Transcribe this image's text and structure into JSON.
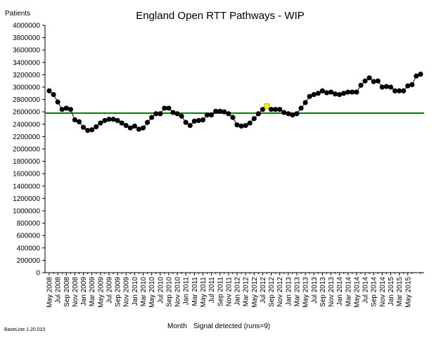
{
  "chart_data": {
    "type": "line",
    "title": "England Open RTT Pathways - WIP",
    "ylabel": "Patients",
    "xlabel": "Month",
    "signal_text": "Signal detected (runs=9)",
    "footer_note": "BaseLine 1.20.010",
    "ylim": [
      0,
      4000000
    ],
    "yticks": [
      "0",
      "200000",
      "400000",
      "600000",
      "800000",
      "1000000",
      "1200000",
      "1400000",
      "1600000",
      "1800000",
      "2000000",
      "2200000",
      "2400000",
      "2600000",
      "2800000",
      "3000000",
      "3200000",
      "3400000",
      "3600000",
      "3800000",
      "4000000"
    ],
    "x_tick_labels": [
      "May 2008",
      "Jul 2008",
      "Sep 2008",
      "Nov 2008",
      "Jan 2009",
      "Mar 2009",
      "May 2009",
      "Jul 2009",
      "Sep 2009",
      "Nov 2009",
      "Jan 2010",
      "Mar 2010",
      "May 2010",
      "Jul 2010",
      "Sep 2010",
      "Nov 2010",
      "Jan 2011",
      "Mar 2011",
      "May 2011",
      "Jul 2011",
      "Sep 2011",
      "Nov 2011",
      "Jan 2012",
      "Mar 2012",
      "May 2012",
      "Jul 2012",
      "Sep 2012",
      "Nov 2012",
      "Jan 2013",
      "Mar 2013",
      "May 2013",
      "Jul 2013",
      "Sep 2013",
      "Nov 2013",
      "Jan 2014",
      "Mar 2014",
      "May 2014",
      "Jul 2014",
      "Sep 2014",
      "Nov 2014",
      "Jan 2015",
      "Mar 2015",
      "May 2015"
    ],
    "baseline": 2580000,
    "series": [
      {
        "values": [
          2940000,
          2880000,
          2760000,
          2640000,
          2660000,
          2640000,
          2470000,
          2440000,
          2350000,
          2300000,
          2310000,
          2360000,
          2420000,
          2460000,
          2480000,
          2480000,
          2460000,
          2420000,
          2380000,
          2340000,
          2370000,
          2320000,
          2340000,
          2430000,
          2510000,
          2570000,
          2570000,
          2660000,
          2660000,
          2590000,
          2570000,
          2530000,
          2430000,
          2380000,
          2450000,
          2460000,
          2470000,
          2550000,
          2550000,
          2610000,
          2610000,
          2600000,
          2570000,
          2510000,
          2390000,
          2370000,
          2380000,
          2420000,
          2490000,
          2570000,
          2640000,
          2690000,
          2640000,
          2640000,
          2640000,
          2590000,
          2570000,
          2550000,
          2570000,
          2660000,
          2750000,
          2850000,
          2880000,
          2900000,
          2940000,
          2910000,
          2920000,
          2890000,
          2880000,
          2900000,
          2920000,
          2920000,
          2920000,
          3030000,
          3100000,
          3150000,
          3090000,
          3100000,
          3000000,
          3010000,
          3000000,
          2940000,
          2940000,
          2940000,
          3020000,
          3040000,
          3180000,
          3210000
        ],
        "highlight_index": 51,
        "colors": {
          "marker": "#000000",
          "line": "#000000",
          "highlight": "#ffff00",
          "baseline": "#008000"
        }
      }
    ]
  }
}
